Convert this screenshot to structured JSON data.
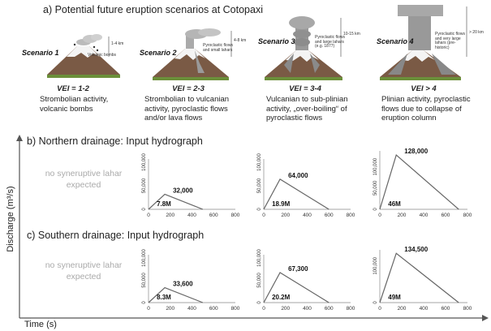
{
  "section_a": {
    "title": "a) Potential future eruption scenarios at Cotopaxi",
    "scenarios": [
      {
        "label": "Scenario 1",
        "vei": "VEI = 1-2",
        "desc": "Strombolian activity, volcanic bombs",
        "annot": "Volcanic bombs",
        "height": "1-4 km"
      },
      {
        "label": "Scenario 2",
        "vei": "VEI = 2-3",
        "desc": "Strombolian to vulcanian activity, pyroclastic flows and/or lava flows",
        "annot": "Pyroclastic flows and small lahars",
        "height": "4-8 km"
      },
      {
        "label": "Scenario 3",
        "vei": "VEI = 3-4",
        "desc": "Vulcanian to sub-plinian activity, „over-boiling“ of pyroclastic flows",
        "annot": "Pyroclastic flows and large lahars (e.g. 1877)",
        "height": "10-15 km"
      },
      {
        "label": "Scenario 4",
        "vei": "VEI > 4",
        "desc": "Plinian activity, pyroclastic flows due to collapse of eruption column",
        "annot": "Pyroclastic flows and very large lahars (pre-historic)",
        "height": "> 20 km"
      }
    ]
  },
  "section_b": {
    "title": "b) Northern drainage: Input hydrograph",
    "note": "no syneruptive lahar expected"
  },
  "section_c": {
    "title": "c) Southern drainage: Input hydrograph",
    "note": "no syneruptive lahar expected"
  },
  "y_axis_label": "Discharge (m³/s)",
  "x_axis_label": "Time (s)",
  "chart_data": [
    {
      "type": "line",
      "panel": "north-scenario-2",
      "x": [
        0,
        150,
        500
      ],
      "y": [
        0,
        32000,
        0
      ],
      "peak_label": "32,000",
      "volume_label": "7.8M",
      "xlim": [
        0,
        800
      ],
      "ylim": [
        0,
        100000
      ],
      "xticks": [
        "0",
        "200",
        "400",
        "600",
        "800"
      ],
      "yticks": [
        "0",
        "50,000",
        "100,000"
      ]
    },
    {
      "type": "line",
      "panel": "north-scenario-3",
      "x": [
        0,
        150,
        600
      ],
      "y": [
        0,
        64000,
        0
      ],
      "peak_label": "64,000",
      "volume_label": "18.9M",
      "xlim": [
        0,
        800
      ],
      "ylim": [
        0,
        100000
      ],
      "xticks": [
        "0",
        "200",
        "400",
        "600",
        "800"
      ],
      "yticks": [
        "0",
        "50,000",
        "100,000"
      ]
    },
    {
      "type": "line",
      "panel": "north-scenario-4",
      "x": [
        0,
        150,
        720
      ],
      "y": [
        0,
        128000,
        0
      ],
      "peak_label": "128,000",
      "volume_label": "46M",
      "xlim": [
        0,
        800
      ],
      "ylim": [
        0,
        130000
      ],
      "xticks": [
        "0",
        "200",
        "400",
        "600",
        "800"
      ],
      "yticks": [
        "0",
        "50,000",
        "100,000"
      ]
    },
    {
      "type": "line",
      "panel": "south-scenario-2",
      "x": [
        0,
        150,
        500
      ],
      "y": [
        0,
        33600,
        0
      ],
      "peak_label": "33,600",
      "volume_label": "8.3M",
      "xlim": [
        0,
        800
      ],
      "ylim": [
        0,
        100000
      ],
      "xticks": [
        "0",
        "200",
        "400",
        "600",
        "800"
      ],
      "yticks": [
        "0",
        "50,000",
        "100,000"
      ]
    },
    {
      "type": "line",
      "panel": "south-scenario-3",
      "x": [
        0,
        150,
        600
      ],
      "y": [
        0,
        67300,
        0
      ],
      "peak_label": "67,300",
      "volume_label": "20.2M",
      "xlim": [
        0,
        800
      ],
      "ylim": [
        0,
        100000
      ],
      "xticks": [
        "0",
        "200",
        "400",
        "600",
        "800"
      ],
      "yticks": [
        "0",
        "50,000",
        "100,000"
      ]
    },
    {
      "type": "line",
      "panel": "south-scenario-4",
      "x": [
        0,
        150,
        720
      ],
      "y": [
        0,
        134500,
        0
      ],
      "peak_label": "134,500",
      "volume_label": "49M",
      "xlim": [
        0,
        800
      ],
      "ylim": [
        0,
        135000
      ],
      "xticks": [
        "0",
        "200",
        "400",
        "600",
        "800"
      ],
      "yticks": [
        "0",
        "100,000"
      ]
    }
  ]
}
